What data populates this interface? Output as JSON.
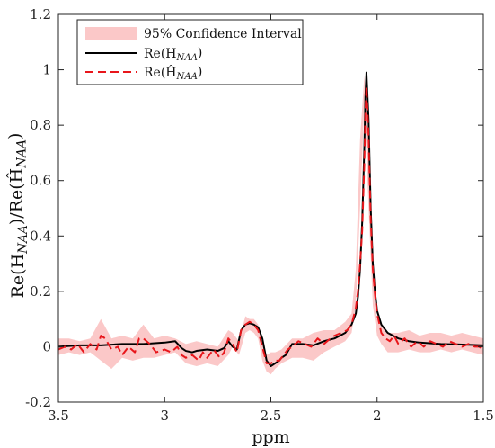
{
  "chart_data": {
    "type": "line",
    "title": "",
    "xlabel": "ppm",
    "ylabel": "Re(H_NAA)/Re(Ĥ_NAA)",
    "xlim": [
      3.5,
      1.5
    ],
    "ylim": [
      -0.2,
      1.2
    ],
    "x_reversed": true,
    "grid": false,
    "legend_position": "top-left",
    "xticks": [
      3.5,
      3,
      2.5,
      2,
      1.5
    ],
    "xtick_labels": [
      "3.5",
      "3",
      "2.5",
      "2",
      "1.5"
    ],
    "yticks": [
      -0.2,
      0,
      0.2,
      0.4,
      0.6,
      0.8,
      1,
      1.2
    ],
    "ytick_labels": [
      "-0.2",
      "0",
      "0.2",
      "0.4",
      "0.6",
      "0.8",
      "1",
      "1.2"
    ],
    "legend": {
      "ci_label": "95% Confidence Interval",
      "true_label": "Re(H_NAA)",
      "est_label": "Re(Ĥ_NAA)"
    },
    "colors": {
      "ci_fill": "#fbc8c8",
      "true_line": "#000000",
      "est_line": "#e8161b"
    },
    "series": [
      {
        "key": "ci",
        "x": [
          3.5,
          3.45,
          3.4,
          3.35,
          3.3,
          3.25,
          3.2,
          3.15,
          3.1,
          3.05,
          3.0,
          2.95,
          2.9,
          2.85,
          2.8,
          2.75,
          2.7,
          2.68,
          2.65,
          2.62,
          2.6,
          2.58,
          2.56,
          2.54,
          2.52,
          2.5,
          2.48,
          2.45,
          2.4,
          2.35,
          2.3,
          2.25,
          2.2,
          2.15,
          2.12,
          2.1,
          2.08,
          2.06,
          2.04,
          2.02,
          2.0,
          1.98,
          1.95,
          1.9,
          1.85,
          1.8,
          1.75,
          1.7,
          1.65,
          1.6,
          1.55,
          1.5
        ],
        "lower": [
          -0.03,
          -0.02,
          -0.03,
          -0.02,
          -0.05,
          -0.08,
          -0.04,
          -0.05,
          -0.04,
          -0.04,
          -0.03,
          -0.02,
          -0.06,
          -0.07,
          -0.06,
          -0.07,
          -0.03,
          0.0,
          -0.03,
          0.05,
          0.06,
          0.05,
          0.03,
          -0.05,
          -0.09,
          -0.1,
          -0.08,
          -0.06,
          -0.04,
          -0.04,
          -0.05,
          -0.02,
          0.0,
          0.02,
          0.05,
          0.15,
          0.5,
          0.88,
          0.5,
          0.15,
          0.04,
          0.01,
          -0.02,
          -0.02,
          -0.01,
          -0.02,
          -0.02,
          -0.01,
          -0.02,
          -0.01,
          -0.02,
          -0.03
        ],
        "upper": [
          0.03,
          0.03,
          0.02,
          0.03,
          0.1,
          0.03,
          0.04,
          0.03,
          0.08,
          0.03,
          0.04,
          0.03,
          0.01,
          0.02,
          0.01,
          0.0,
          0.06,
          0.05,
          0.02,
          0.11,
          0.1,
          0.1,
          0.08,
          0.01,
          -0.03,
          -0.02,
          -0.02,
          -0.01,
          0.03,
          0.03,
          0.05,
          0.06,
          0.06,
          0.09,
          0.12,
          0.28,
          0.75,
          0.98,
          0.74,
          0.26,
          0.1,
          0.08,
          0.05,
          0.05,
          0.06,
          0.04,
          0.05,
          0.05,
          0.04,
          0.05,
          0.04,
          0.03
        ]
      },
      {
        "key": "true",
        "x": [
          3.5,
          3.4,
          3.3,
          3.2,
          3.1,
          3.0,
          2.95,
          2.92,
          2.9,
          2.87,
          2.85,
          2.8,
          2.75,
          2.72,
          2.7,
          2.68,
          2.66,
          2.64,
          2.62,
          2.6,
          2.58,
          2.56,
          2.54,
          2.52,
          2.5,
          2.48,
          2.46,
          2.45,
          2.43,
          2.4,
          2.35,
          2.3,
          2.25,
          2.2,
          2.15,
          2.12,
          2.1,
          2.09,
          2.08,
          2.07,
          2.06,
          2.055,
          2.05,
          2.04,
          2.03,
          2.02,
          2.01,
          2.0,
          1.98,
          1.95,
          1.9,
          1.85,
          1.8,
          1.7,
          1.6,
          1.5
        ],
        "y": [
          0.0,
          0.005,
          0.005,
          0.01,
          0.01,
          0.015,
          0.02,
          -0.005,
          -0.015,
          -0.02,
          -0.015,
          -0.01,
          -0.015,
          -0.005,
          0.02,
          0.0,
          -0.01,
          0.06,
          0.08,
          0.085,
          0.08,
          0.07,
          0.03,
          -0.05,
          -0.07,
          -0.06,
          -0.05,
          -0.04,
          -0.03,
          0.01,
          0.01,
          0.005,
          0.02,
          0.03,
          0.05,
          0.08,
          0.12,
          0.18,
          0.28,
          0.45,
          0.72,
          0.9,
          0.99,
          0.82,
          0.5,
          0.3,
          0.2,
          0.13,
          0.08,
          0.05,
          0.03,
          0.02,
          0.015,
          0.01,
          0.008,
          0.005
        ]
      },
      {
        "key": "estimate",
        "x": [
          3.5,
          3.47,
          3.44,
          3.41,
          3.38,
          3.35,
          3.32,
          3.3,
          3.28,
          3.25,
          3.22,
          3.2,
          3.17,
          3.14,
          3.12,
          3.1,
          3.07,
          3.04,
          3.0,
          2.97,
          2.94,
          2.92,
          2.9,
          2.87,
          2.84,
          2.82,
          2.8,
          2.77,
          2.74,
          2.72,
          2.7,
          2.68,
          2.66,
          2.64,
          2.62,
          2.6,
          2.58,
          2.56,
          2.54,
          2.52,
          2.5,
          2.48,
          2.46,
          2.44,
          2.42,
          2.4,
          2.37,
          2.34,
          2.31,
          2.28,
          2.25,
          2.22,
          2.2,
          2.17,
          2.14,
          2.12,
          2.1,
          2.09,
          2.08,
          2.07,
          2.06,
          2.055,
          2.05,
          2.04,
          2.03,
          2.02,
          2.01,
          2.0,
          1.98,
          1.96,
          1.94,
          1.92,
          1.9,
          1.87,
          1.84,
          1.81,
          1.78,
          1.75,
          1.72,
          1.69,
          1.66,
          1.63,
          1.6,
          1.57,
          1.54,
          1.52,
          1.5
        ],
        "y": [
          -0.01,
          0.0,
          -0.01,
          0.01,
          -0.02,
          0.01,
          -0.01,
          0.04,
          0.03,
          -0.01,
          0.0,
          -0.03,
          0.0,
          -0.02,
          0.03,
          0.03,
          0.01,
          -0.02,
          -0.01,
          -0.02,
          0.0,
          -0.03,
          -0.04,
          -0.03,
          -0.05,
          -0.02,
          -0.04,
          -0.01,
          -0.04,
          -0.02,
          0.03,
          0.01,
          -0.02,
          0.06,
          0.08,
          0.09,
          0.08,
          0.06,
          0.0,
          -0.06,
          -0.06,
          -0.05,
          -0.05,
          -0.03,
          -0.01,
          0.0,
          0.02,
          0.01,
          0.0,
          0.03,
          0.01,
          0.03,
          0.04,
          0.05,
          0.06,
          0.08,
          0.14,
          0.2,
          0.3,
          0.42,
          0.66,
          0.84,
          0.94,
          0.76,
          0.46,
          0.28,
          0.19,
          0.12,
          0.05,
          0.03,
          0.02,
          0.04,
          0.01,
          0.03,
          0.0,
          0.02,
          0.0,
          0.02,
          0.01,
          0.0,
          0.02,
          0.01,
          0.0,
          0.01,
          0.0,
          0.0,
          -0.01
        ]
      }
    ]
  }
}
